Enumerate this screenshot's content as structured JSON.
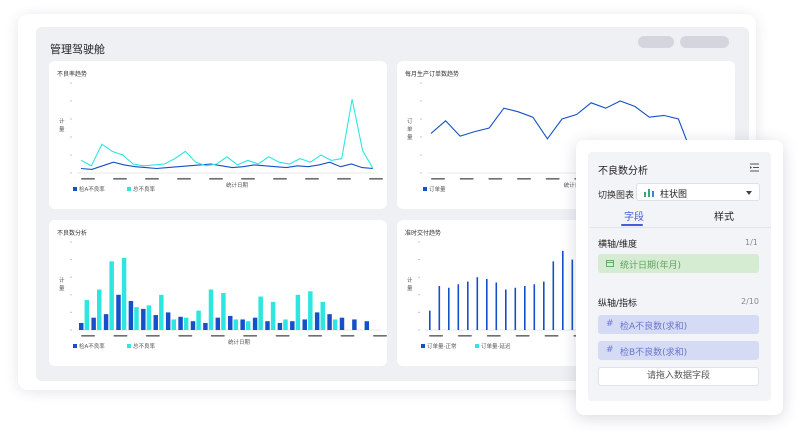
{
  "dashboard": {
    "title": "管理驾驶舱"
  },
  "charts": [
    {
      "id": "defect-trend",
      "title": "不良率趋势",
      "ylabel": "计量",
      "xlabel": "统计日期",
      "legend": [
        "检A不良率",
        "总不良率"
      ]
    },
    {
      "id": "monthly-orders",
      "title": "每月生产订单数趋势",
      "ylabel": "订单量",
      "xlabel": "统计日",
      "legend": [
        "订单量"
      ]
    },
    {
      "id": "defect-analysis",
      "title": "不良数分析",
      "ylabel": "计量",
      "xlabel": "统计日期",
      "legend": [
        "检A不良率",
        "总不良率"
      ]
    },
    {
      "id": "ontime-delivery",
      "title": "准时交付趋势",
      "ylabel": "计量",
      "xlabel": "",
      "legend": [
        "订单量-正常",
        "订单量-延迟"
      ]
    }
  ],
  "chart_data": [
    {
      "type": "line",
      "title": "不良率趋势",
      "xlabel": "统计日期",
      "ylabel": "计量",
      "ylim": [
        0,
        100
      ],
      "series": [
        {
          "name": "检A不良率",
          "color": "#1550c8",
          "values": [
            5,
            4,
            8,
            12,
            9,
            7,
            6,
            5,
            6,
            7,
            8,
            9,
            10,
            8,
            6,
            7,
            9,
            8,
            7,
            6,
            8,
            7,
            9,
            12,
            7,
            10,
            6,
            5
          ]
        },
        {
          "name": "总不良率",
          "color": "#2ee6e0",
          "values": [
            14,
            8,
            32,
            24,
            20,
            10,
            8,
            9,
            10,
            16,
            24,
            12,
            8,
            10,
            18,
            9,
            14,
            10,
            18,
            12,
            10,
            16,
            12,
            20,
            14,
            16,
            82,
            25,
            5
          ]
        }
      ]
    },
    {
      "type": "line",
      "title": "每月生产订单数趋势",
      "xlabel": "统计日",
      "ylabel": "订单量",
      "ylim": [
        0,
        100
      ],
      "series": [
        {
          "name": "订单量",
          "color": "#1550c8",
          "values": [
            44,
            58,
            41,
            46,
            50,
            72,
            68,
            62,
            38,
            60,
            65,
            78,
            72,
            80,
            74,
            62,
            64,
            60,
            18
          ]
        }
      ]
    },
    {
      "type": "bar",
      "title": "不良数分析",
      "xlabel": "统计日期",
      "ylabel": "计量",
      "ylim": [
        0,
        100
      ],
      "series": [
        {
          "name": "检A不良率",
          "color": "#1550c8",
          "values": [
            8,
            14,
            18,
            40,
            33,
            24,
            17,
            20,
            15,
            10,
            8,
            14,
            16,
            12,
            14,
            10,
            8,
            10,
            12,
            20,
            18,
            14,
            12,
            10
          ]
        },
        {
          "name": "总不良率",
          "color": "#2ee6e0",
          "values": [
            34,
            46,
            78,
            82,
            26,
            28,
            40,
            12,
            14,
            22,
            46,
            42,
            12,
            10,
            38,
            32,
            12,
            40,
            44,
            32,
            12
          ]
        }
      ]
    },
    {
      "type": "bar",
      "title": "准时交付趋势",
      "xlabel": "",
      "ylabel": "计量",
      "ylim": [
        0,
        100
      ],
      "series": [
        {
          "name": "订单量-正常",
          "color": "#1550c8",
          "values": [
            22,
            50,
            48,
            52,
            55,
            60,
            58,
            54,
            46,
            48,
            50,
            52,
            55,
            78,
            90,
            80,
            70,
            76,
            60,
            80,
            70,
            74,
            50,
            66,
            70,
            88,
            82,
            60
          ]
        },
        {
          "name": "订单量-延迟",
          "color": "#2ee6e0",
          "values": []
        }
      ]
    }
  ],
  "panel": {
    "title": "不良数分析",
    "switch_chart_label": "切换图表",
    "chart_type": "柱状图",
    "tabs": [
      "字段",
      "样式"
    ],
    "x_axis_title": "横轴/维度",
    "x_axis_count": "1/1",
    "x_axis_fields": [
      "统计日期(年月)"
    ],
    "y_axis_title": "纵轴/指标",
    "y_axis_count": "2/10",
    "y_axis_fields": [
      "检A不良数(求和)",
      "检B不良数(求和)"
    ],
    "drop_hint": "请拖入数据字段",
    "colors": {
      "accent": "#4a5bd6",
      "dim_green": "#d5ecd3",
      "measure_blue": "#d5dbf5"
    }
  }
}
